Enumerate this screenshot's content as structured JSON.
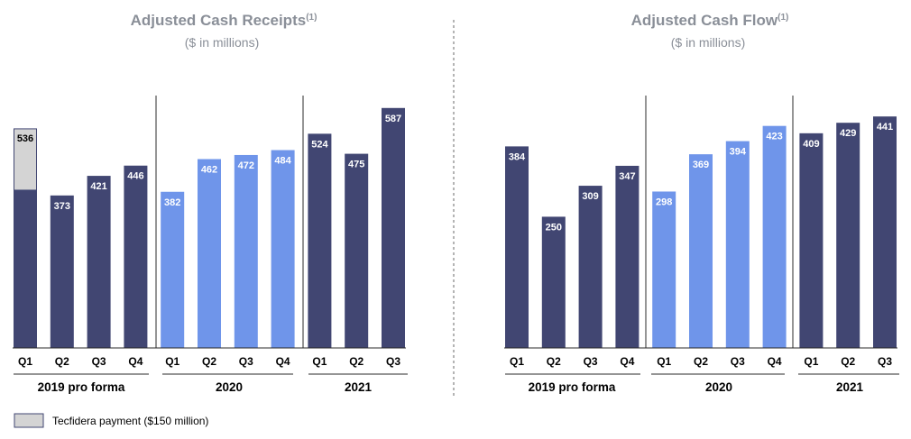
{
  "colors": {
    "dark": "#414672",
    "light": "#6f95ea",
    "tecfidera": "#d4d4d4",
    "title": "#8a8f98"
  },
  "legend": {
    "label": "Tecfidera payment ($150 million)"
  },
  "chart_data": [
    {
      "type": "bar",
      "title": "Adjusted Cash Receipts",
      "title_superscript": "(1)",
      "subtitle": "($ in millions)",
      "categories": [
        "Q1",
        "Q2",
        "Q3",
        "Q4",
        "Q1",
        "Q2",
        "Q3",
        "Q4",
        "Q1",
        "Q2",
        "Q3"
      ],
      "groups": [
        {
          "label": "2019 pro forma",
          "count": 4
        },
        {
          "label": "2020",
          "count": 4
        },
        {
          "label": "2021",
          "count": 3
        }
      ],
      "values": [
        536,
        373,
        421,
        446,
        382,
        462,
        472,
        484,
        524,
        475,
        587
      ],
      "stacked_top": [
        150,
        0,
        0,
        0,
        0,
        0,
        0,
        0,
        0,
        0,
        0
      ],
      "shade": [
        "dark",
        "dark",
        "dark",
        "dark",
        "light",
        "light",
        "light",
        "light",
        "dark",
        "dark",
        "dark"
      ],
      "ylim": [
        0,
        650
      ],
      "grid": false
    },
    {
      "type": "bar",
      "title": "Adjusted Cash Flow",
      "title_superscript": "(1)",
      "subtitle": "($ in millions)",
      "categories": [
        "Q1",
        "Q2",
        "Q3",
        "Q4",
        "Q1",
        "Q2",
        "Q3",
        "Q4",
        "Q1",
        "Q2",
        "Q3"
      ],
      "groups": [
        {
          "label": "2019 pro forma",
          "count": 4
        },
        {
          "label": "2020",
          "count": 4
        },
        {
          "label": "2021",
          "count": 3
        }
      ],
      "values": [
        384,
        250,
        309,
        347,
        298,
        369,
        394,
        423,
        409,
        429,
        441
      ],
      "stacked_top": [
        0,
        0,
        0,
        0,
        0,
        0,
        0,
        0,
        0,
        0,
        0
      ],
      "shade": [
        "dark",
        "dark",
        "dark",
        "dark",
        "light",
        "light",
        "light",
        "light",
        "dark",
        "dark",
        "dark"
      ],
      "ylim": [
        0,
        500
      ],
      "grid": false
    }
  ]
}
